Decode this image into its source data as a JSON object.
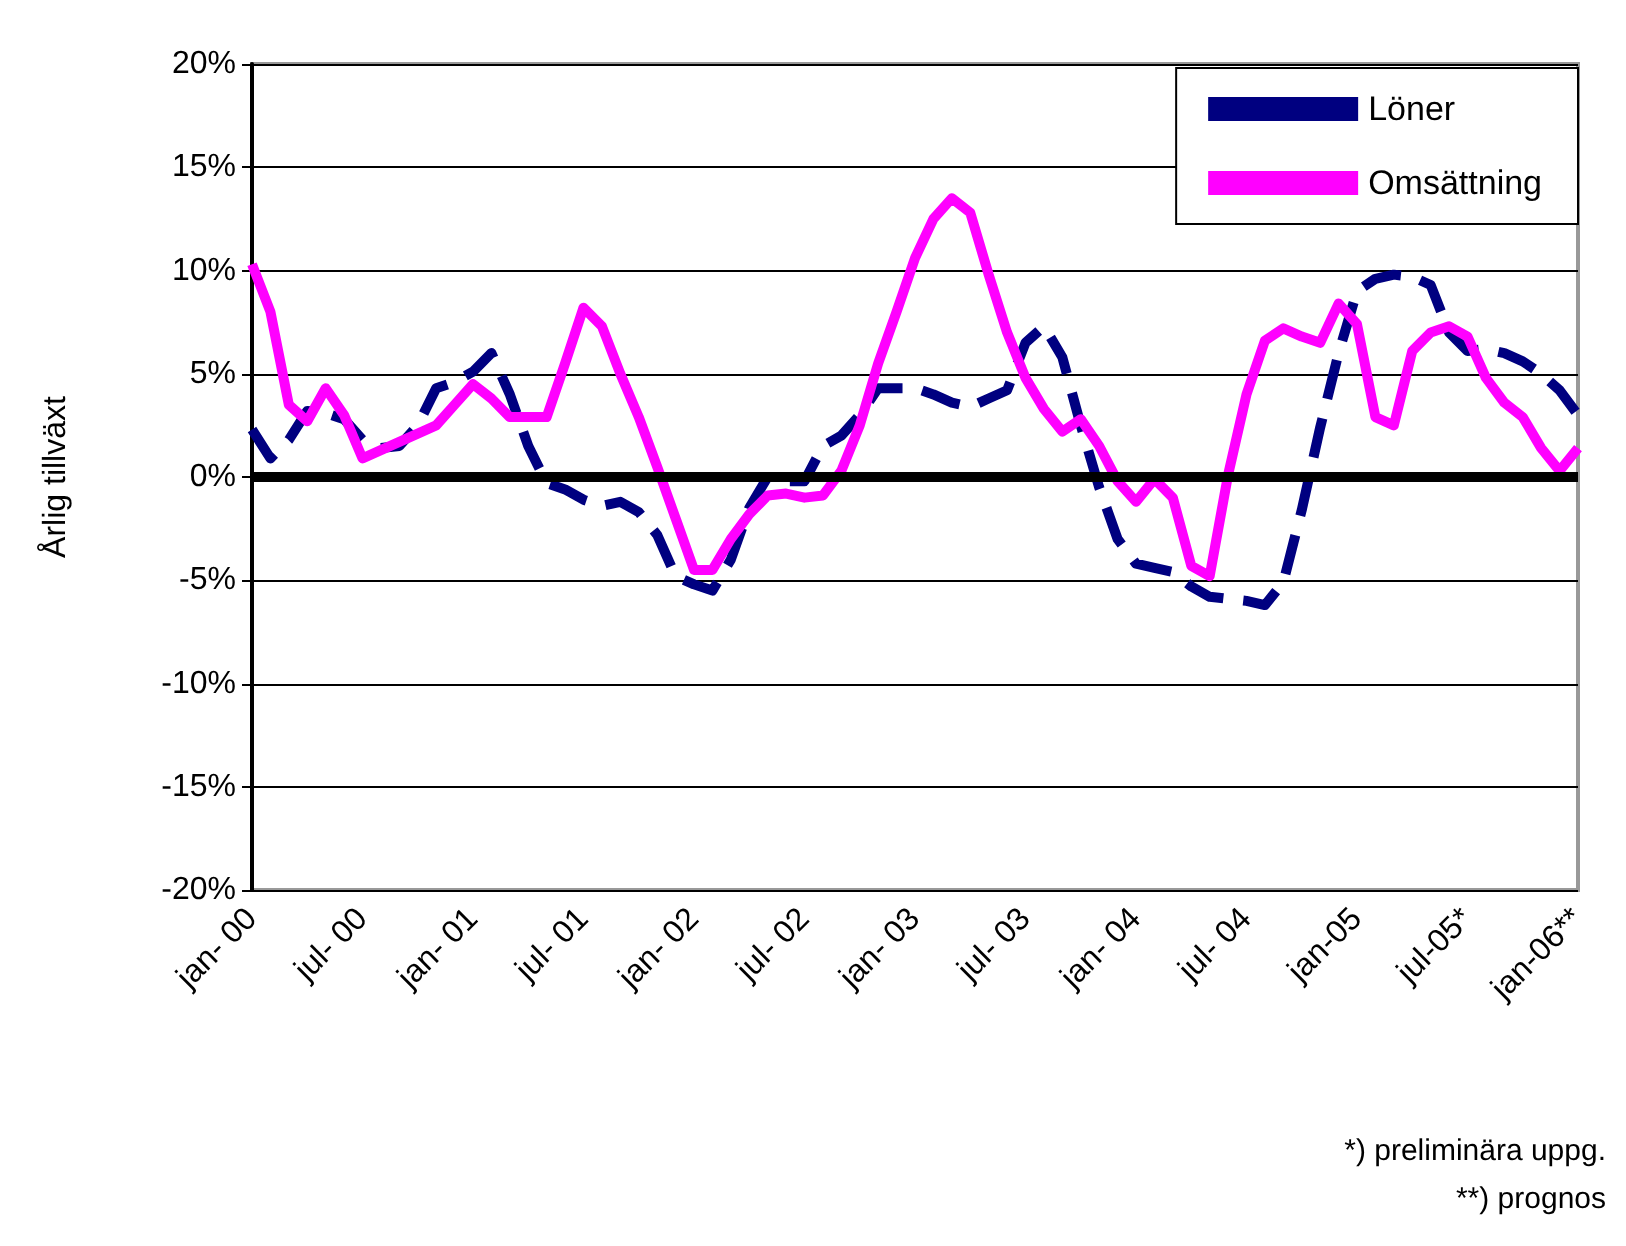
{
  "chart_data": {
    "type": "line",
    "ylabel": "Årlig tillväxt",
    "categories": [
      "jan- 00",
      null,
      null,
      null,
      null,
      null,
      "jul- 00",
      null,
      null,
      null,
      null,
      null,
      "jan- 01",
      null,
      null,
      null,
      null,
      null,
      "jul- 01",
      null,
      null,
      null,
      null,
      null,
      "jan- 02",
      null,
      null,
      null,
      null,
      null,
      "jul- 02",
      null,
      null,
      null,
      null,
      null,
      "jan- 03",
      null,
      null,
      null,
      null,
      null,
      "jul- 03",
      null,
      null,
      null,
      null,
      null,
      "jan- 04",
      null,
      null,
      null,
      null,
      null,
      "jul- 04",
      null,
      null,
      null,
      null,
      null,
      "jan-05",
      null,
      null,
      null,
      null,
      null,
      "jul-05*",
      null,
      null,
      null,
      null,
      null,
      "jan-06**"
    ],
    "series": [
      {
        "name": "Löner",
        "color": "#000080",
        "line_style": "dashed",
        "values": [
          2.3,
          0.9,
          1.8,
          3.2,
          3.1,
          2.8,
          1.8,
          1.4,
          1.5,
          2.5,
          4.3,
          4.6,
          5.1,
          6.0,
          4.0,
          1.5,
          -0.3,
          -0.6,
          -1.1,
          -1.4,
          -1.2,
          -1.7,
          -2.8,
          -4.8,
          -5.2,
          -5.5,
          -4.0,
          -1.5,
          0.0,
          -0.2,
          -0.2,
          1.5,
          2.0,
          3.0,
          4.3,
          4.3,
          4.3,
          4.0,
          3.6,
          3.4,
          3.8,
          4.2,
          6.5,
          7.3,
          5.8,
          2.5,
          -0.5,
          -3.0,
          -4.2,
          -4.4,
          -4.6,
          -5.3,
          -5.8,
          -5.9,
          -6.0,
          -6.2,
          -5.1,
          -1.6,
          2.4,
          6.0,
          9.0,
          9.6,
          9.8,
          9.7,
          9.3,
          7.0,
          6.1,
          6.2,
          6.0,
          5.6,
          5.0,
          4.2,
          3.0
        ]
      },
      {
        "name": "Omsättning",
        "color": "#ff00ff",
        "line_style": "solid",
        "values": [
          10.3,
          8.0,
          3.5,
          2.7,
          4.3,
          3.0,
          0.9,
          1.3,
          1.7,
          2.1,
          2.5,
          3.5,
          4.5,
          3.8,
          2.9,
          2.9,
          2.9,
          5.5,
          8.2,
          7.3,
          5.0,
          2.9,
          0.5,
          -2.0,
          -4.5,
          -4.5,
          -3.0,
          -1.8,
          -0.9,
          -0.8,
          -1.0,
          -0.9,
          0.3,
          2.5,
          5.5,
          8.0,
          10.6,
          12.5,
          13.5,
          12.8,
          9.8,
          7.0,
          4.8,
          3.3,
          2.2,
          2.8,
          1.5,
          -0.2,
          -1.2,
          -0.1,
          -1.0,
          -4.3,
          -4.8,
          0.1,
          4.0,
          6.6,
          7.2,
          6.8,
          6.5,
          8.4,
          7.4,
          2.9,
          2.5,
          6.1,
          7.0,
          7.3,
          6.8,
          4.8,
          3.6,
          2.9,
          1.4,
          0.3,
          1.4
        ]
      }
    ],
    "ylim": [
      -20,
      20
    ],
    "yticks": [
      {
        "value": -20,
        "label": "-20%"
      },
      {
        "value": -15,
        "label": "-15%"
      },
      {
        "value": -10,
        "label": "-10%"
      },
      {
        "value": -5,
        "label": "-5%"
      },
      {
        "value": 0,
        "label": "0%"
      },
      {
        "value": 5,
        "label": "5%"
      },
      {
        "value": 10,
        "label": "10%"
      },
      {
        "value": 15,
        "label": "15%"
      },
      {
        "value": 20,
        "label": "20%"
      }
    ],
    "ref_lines": [
      {
        "axis": "y",
        "value": 0,
        "color": "#000000"
      }
    ],
    "grid": "y",
    "legend": "top right",
    "marker": "none",
    "annotations": [
      "*) preliminära uppg.",
      "**) prognos"
    ]
  }
}
